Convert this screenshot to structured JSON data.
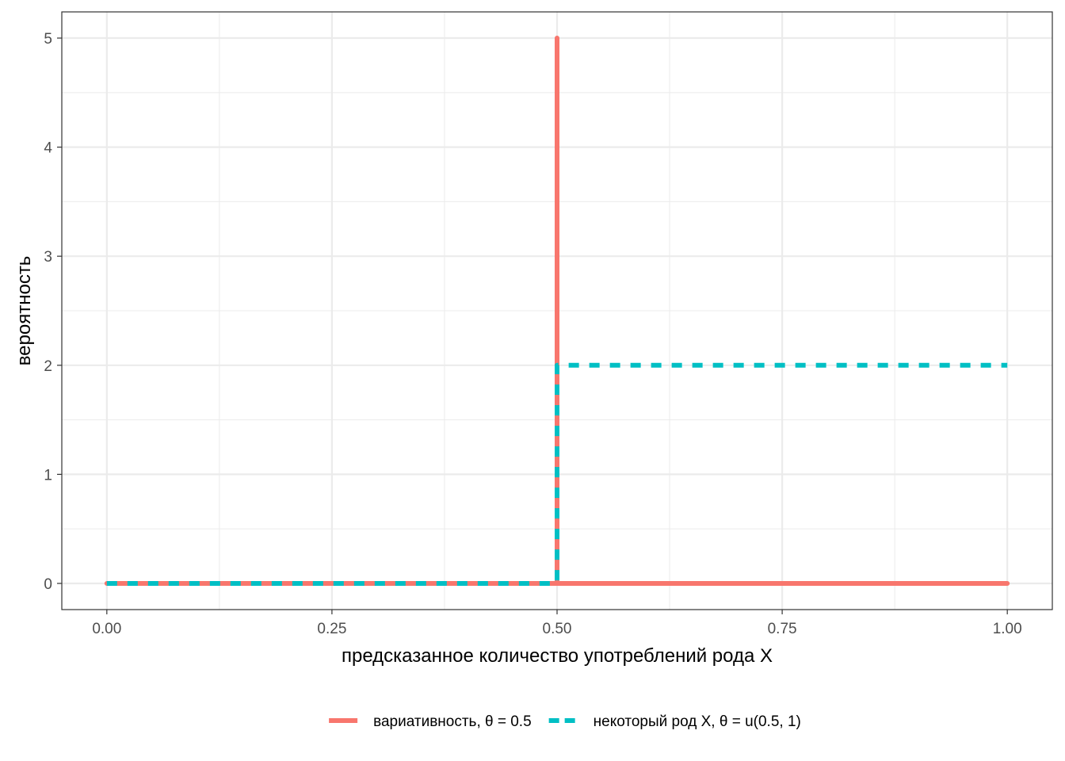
{
  "chart_data": {
    "type": "line",
    "xlabel": "предсказанное количество употреблений рода X",
    "ylabel": "вероятность",
    "xlim": [
      -0.05,
      1.05
    ],
    "ylim": [
      -0.24,
      5.24
    ],
    "x_ticks": [
      0,
      0.25,
      0.5,
      0.75,
      1
    ],
    "x_tick_labels": [
      "0.00",
      "0.25",
      "0.50",
      "0.75",
      "1.00"
    ],
    "y_ticks": [
      0,
      1,
      2,
      3,
      4,
      5
    ],
    "y_tick_labels": [
      "0",
      "1",
      "2",
      "3",
      "4",
      "5"
    ],
    "grid": true,
    "legend_position": "bottom",
    "series": [
      {
        "name": "вариативность, θ = 0.5",
        "color": "#F8766D",
        "line_style": "solid",
        "points": [
          [
            0,
            0
          ],
          [
            0.5,
            0
          ],
          [
            0.5,
            5
          ],
          [
            0.5,
            0
          ],
          [
            1,
            0
          ]
        ]
      },
      {
        "name": "некоторый род X, θ = u(0.5, 1)",
        "color": "#00BFC4",
        "line_style": "dashed",
        "points": [
          [
            0,
            0
          ],
          [
            0.5,
            0
          ],
          [
            0.5,
            2
          ],
          [
            1,
            2
          ]
        ]
      }
    ]
  }
}
